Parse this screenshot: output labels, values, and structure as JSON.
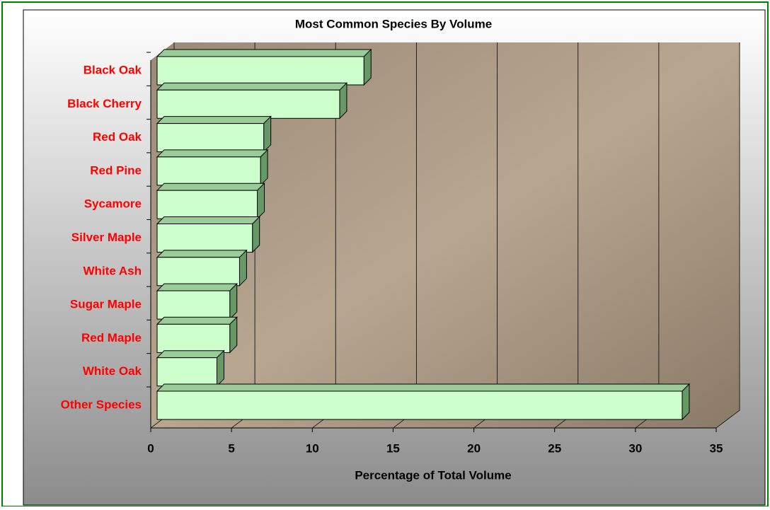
{
  "chart_data": {
    "type": "bar",
    "orientation": "horizontal",
    "title": "Most Common Species By Volume",
    "x_label": "Percentage of Total Volume",
    "categories": [
      "Black Oak",
      "Black Cherry",
      "Red Oak",
      "Red Pine",
      "Sycamore",
      "Silver Maple",
      "White Ash",
      "Sugar Maple",
      "Red Maple",
      "White Oak",
      "Other Species"
    ],
    "values": [
      12.8,
      11.3,
      6.6,
      6.4,
      6.2,
      5.9,
      5.1,
      4.5,
      4.5,
      3.7,
      32.5
    ],
    "color": "#ccffcc",
    "label_color": "#ff0000",
    "xlim": [
      0,
      35
    ],
    "xticks": [
      0,
      5,
      10,
      15,
      20,
      25,
      30,
      35
    ],
    "grid": true
  }
}
